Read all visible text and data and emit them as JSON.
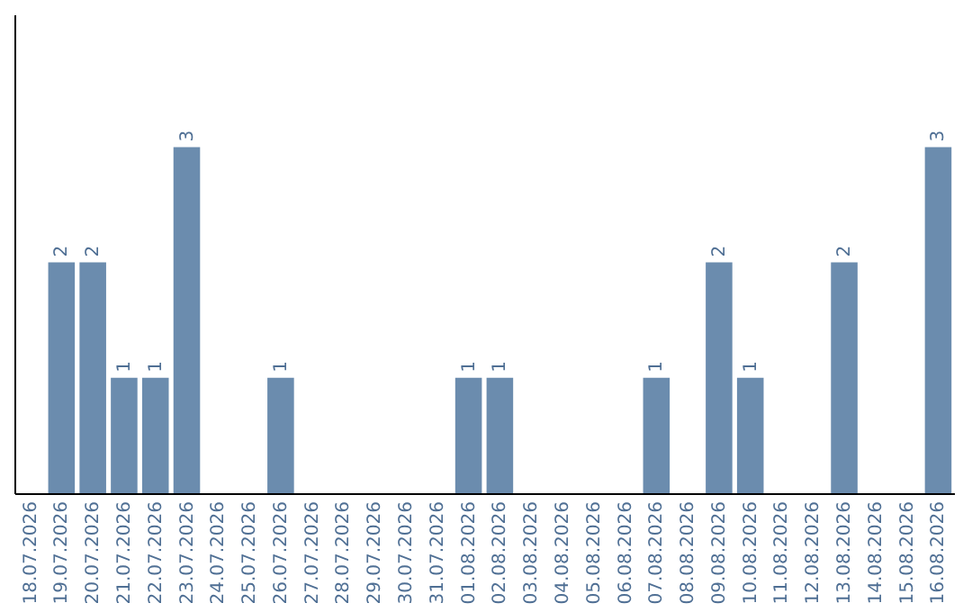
{
  "chart_data": {
    "type": "bar",
    "categories": [
      "18.07.2026",
      "19.07.2026",
      "20.07.2026",
      "21.07.2026",
      "22.07.2026",
      "23.07.2026",
      "24.07.2026",
      "25.07.2026",
      "26.07.2026",
      "27.07.2026",
      "28.07.2026",
      "29.07.2026",
      "30.07.2026",
      "31.07.2026",
      "01.08.2026",
      "02.08.2026",
      "03.08.2026",
      "04.08.2026",
      "05.08.2026",
      "06.08.2026",
      "07.08.2026",
      "08.08.2026",
      "09.08.2026",
      "10.08.2026",
      "11.08.2026",
      "12.08.2026",
      "13.08.2026",
      "14.08.2026",
      "15.08.2026",
      "16.08.2026"
    ],
    "values": [
      0,
      2,
      2,
      1,
      1,
      3,
      0,
      0,
      1,
      0,
      0,
      0,
      0,
      0,
      1,
      1,
      0,
      0,
      0,
      0,
      1,
      0,
      2,
      1,
      0,
      0,
      2,
      0,
      0,
      3
    ],
    "value_labels": [
      null,
      "2",
      "2",
      "1",
      "1",
      "3",
      null,
      null,
      "1",
      null,
      null,
      null,
      null,
      null,
      "1",
      "1",
      null,
      null,
      null,
      null,
      "1",
      null,
      "2",
      "1",
      null,
      null,
      "2",
      null,
      null,
      "3"
    ],
    "color": "#6b8cae",
    "ylim": [
      0,
      4.15
    ],
    "tick_labels": "x",
    "grid": false
  }
}
